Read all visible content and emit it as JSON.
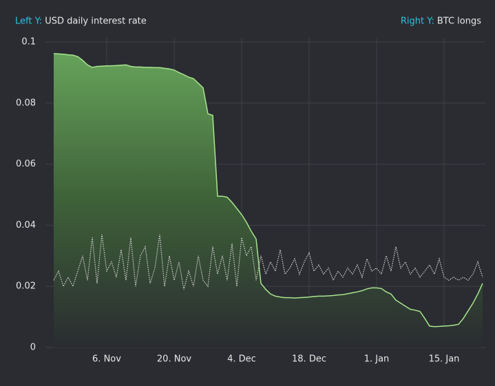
{
  "chart_data": {
    "type": "area",
    "left_axis_label": "Left Y:",
    "right_axis_label": "Right Y:",
    "x": [
      "26. Oct",
      "27. Oct",
      "28. Oct",
      "29. Oct",
      "30. Oct",
      "31. Oct",
      "1. Nov",
      "2. Nov",
      "3. Nov",
      "4. Nov",
      "5. Nov",
      "6. Nov",
      "7. Nov",
      "8. Nov",
      "9. Nov",
      "10. Nov",
      "11. Nov",
      "12. Nov",
      "13. Nov",
      "14. Nov",
      "15. Nov",
      "16. Nov",
      "17. Nov",
      "18. Nov",
      "19. Nov",
      "20. Nov",
      "21. Nov",
      "22. Nov",
      "23. Nov",
      "24. Nov",
      "25. Nov",
      "26. Nov",
      "27. Nov",
      "28. Nov",
      "29. Nov",
      "30. Nov",
      "1. Dec",
      "2. Dec",
      "3. Dec",
      "4. Dec",
      "5. Dec",
      "6. Dec",
      "7. Dec",
      "8. Dec",
      "9. Dec",
      "10. Dec",
      "11. Dec",
      "12. Dec",
      "13. Dec",
      "14. Dec",
      "15. Dec",
      "16. Dec",
      "17. Dec",
      "18. Dec",
      "19. Dec",
      "20. Dec",
      "21. Dec",
      "22. Dec",
      "23. Dec",
      "24. Dec",
      "25. Dec",
      "26. Dec",
      "27. Dec",
      "28. Dec",
      "29. Dec",
      "30. Dec",
      "31. Dec",
      "1. Jan",
      "2. Jan",
      "3. Jan",
      "4. Jan",
      "5. Jan",
      "6. Jan",
      "7. Jan",
      "8. Jan",
      "9. Jan",
      "10. Jan",
      "11. Jan",
      "12. Jan",
      "13. Jan",
      "14. Jan",
      "15. Jan",
      "16. Jan",
      "17. Jan",
      "18. Jan",
      "19. Jan",
      "20. Jan",
      "21. Jan",
      "22. Jan",
      "23. Jan"
    ],
    "xticks": [
      "6. Nov",
      "20. Nov",
      "4. Dec",
      "18. Dec",
      "1. Jan",
      "15. Jan"
    ],
    "ylim": [
      0,
      0.1
    ],
    "yticks": [
      0,
      0.02,
      0.04,
      0.06,
      0.08,
      0.1
    ],
    "y2lim": [
      0,
      0.1
    ],
    "grid": true,
    "series": [
      {
        "name": "USD daily interest rate",
        "color": "#a9e68f",
        "values": [
          0.0962,
          0.0961,
          0.096,
          0.0958,
          0.0957,
          0.0952,
          0.094,
          0.0925,
          0.0917,
          0.092,
          0.0921,
          0.0922,
          0.0922,
          0.0923,
          0.0924,
          0.0925,
          0.092,
          0.0918,
          0.0918,
          0.0917,
          0.0917,
          0.0916,
          0.0916,
          0.0914,
          0.0912,
          0.0908,
          0.09,
          0.0893,
          0.0885,
          0.088,
          0.0865,
          0.085,
          0.0765,
          0.076,
          0.0495,
          0.0495,
          0.0492,
          0.0475,
          0.0455,
          0.0435,
          0.041,
          0.038,
          0.0355,
          0.021,
          0.019,
          0.0175,
          0.0168,
          0.0165,
          0.0163,
          0.0163,
          0.0162,
          0.0163,
          0.0164,
          0.0165,
          0.0167,
          0.0168,
          0.0168,
          0.0169,
          0.017,
          0.0172,
          0.0173,
          0.0176,
          0.0179,
          0.0182,
          0.0186,
          0.0192,
          0.0195,
          0.0195,
          0.0193,
          0.0182,
          0.0175,
          0.0155,
          0.0145,
          0.0135,
          0.0125,
          0.0122,
          0.0118,
          0.0095,
          0.007,
          0.0068,
          0.0069,
          0.007,
          0.0071,
          0.0073,
          0.0076,
          0.0095,
          0.012,
          0.0145,
          0.0175,
          0.021
        ]
      },
      {
        "name": "BTC longs",
        "color": "#d6d6d6",
        "axis": "y2",
        "dashed": true,
        "values": [
          0.022,
          0.025,
          0.02,
          0.023,
          0.02,
          0.025,
          0.03,
          0.022,
          0.036,
          0.021,
          0.037,
          0.025,
          0.028,
          0.023,
          0.032,
          0.022,
          0.036,
          0.02,
          0.03,
          0.033,
          0.021,
          0.026,
          0.037,
          0.02,
          0.03,
          0.022,
          0.028,
          0.019,
          0.025,
          0.02,
          0.03,
          0.022,
          0.02,
          0.033,
          0.024,
          0.03,
          0.022,
          0.034,
          0.02,
          0.036,
          0.03,
          0.033,
          0.022,
          0.03,
          0.024,
          0.028,
          0.025,
          0.032,
          0.024,
          0.026,
          0.029,
          0.024,
          0.028,
          0.031,
          0.025,
          0.027,
          0.024,
          0.026,
          0.022,
          0.025,
          0.023,
          0.026,
          0.024,
          0.027,
          0.023,
          0.029,
          0.025,
          0.026,
          0.024,
          0.03,
          0.025,
          0.033,
          0.026,
          0.028,
          0.024,
          0.026,
          0.023,
          0.025,
          0.027,
          0.024,
          0.029,
          0.023,
          0.022,
          0.023,
          0.022,
          0.023,
          0.022,
          0.024,
          0.028,
          0.023
        ]
      }
    ]
  }
}
